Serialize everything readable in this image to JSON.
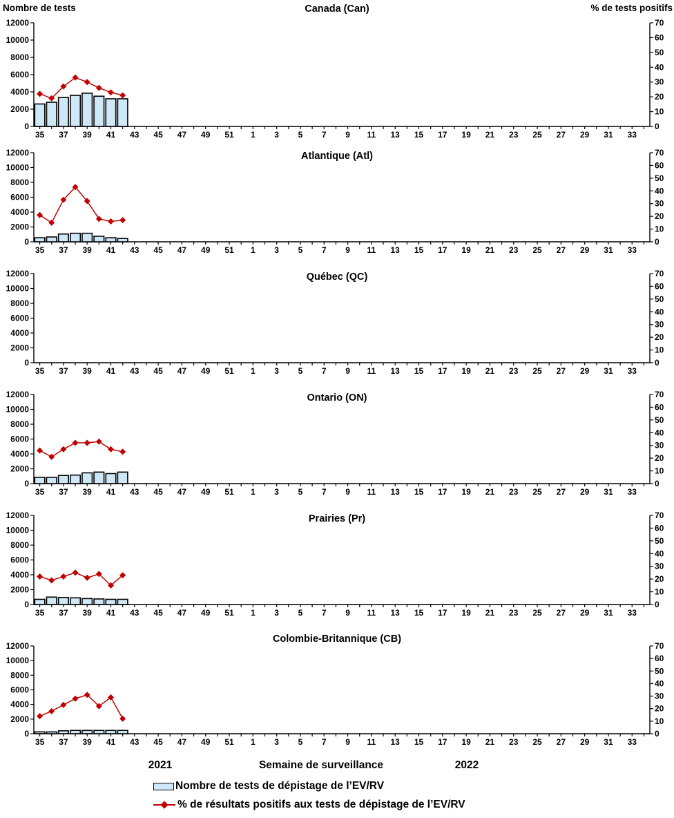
{
  "axes": {
    "left_title": "Nombre de tests",
    "right_title": "% de tests positifs",
    "left_min": 0,
    "left_max": 12000,
    "left_step": 2000,
    "right_min": 0,
    "right_max": 70,
    "right_step": 10
  },
  "x_axis": {
    "categories": [
      35,
      36,
      37,
      38,
      39,
      40,
      41,
      42,
      43,
      44,
      45,
      46,
      47,
      48,
      49,
      50,
      51,
      52,
      1,
      2,
      3,
      4,
      5,
      6,
      7,
      8,
      9,
      10,
      11,
      12,
      13,
      14,
      15,
      16,
      17,
      18,
      19,
      20,
      21,
      22,
      23,
      24,
      25,
      26,
      27,
      28,
      29,
      30,
      31,
      32,
      33,
      34
    ],
    "tick_labels": [
      35,
      37,
      39,
      41,
      43,
      45,
      47,
      49,
      51,
      1,
      3,
      5,
      7,
      9,
      11,
      13,
      15,
      17,
      19,
      21,
      23,
      25,
      27,
      29,
      31,
      33
    ]
  },
  "chart_data": [
    {
      "type": "combo-bar-line",
      "title": "Canada (Can)",
      "weeks": [
        35,
        36,
        37,
        38,
        39,
        40,
        41,
        42
      ],
      "tests": [
        2600,
        2800,
        3350,
        3600,
        3850,
        3500,
        3200,
        3200
      ],
      "pct_positive": [
        22,
        19,
        27,
        33,
        30,
        26,
        23,
        21
      ],
      "ylim_left": [
        0,
        12000
      ],
      "ylim_right": [
        0,
        70
      ]
    },
    {
      "type": "combo-bar-line",
      "title": "Atlantique (Atl)",
      "weeks": [
        35,
        36,
        37,
        38,
        39,
        40,
        41,
        42
      ],
      "tests": [
        550,
        650,
        1050,
        1150,
        1150,
        750,
        550,
        450
      ],
      "pct_positive": [
        21,
        15,
        33,
        43,
        32,
        18,
        16,
        17
      ],
      "ylim_left": [
        0,
        12000
      ],
      "ylim_right": [
        0,
        70
      ]
    },
    {
      "type": "combo-bar-line",
      "title": "Québec (QC)",
      "weeks": [],
      "tests": [],
      "pct_positive": [],
      "ylim_left": [
        0,
        12000
      ],
      "ylim_right": [
        0,
        70
      ]
    },
    {
      "type": "combo-bar-line",
      "title": "Ontario (ON)",
      "weeks": [
        35,
        36,
        37,
        38,
        39,
        40,
        41,
        42
      ],
      "tests": [
        850,
        850,
        1100,
        1150,
        1450,
        1550,
        1350,
        1550
      ],
      "pct_positive": [
        26,
        21,
        27,
        32,
        32,
        33,
        27,
        25
      ],
      "ylim_left": [
        0,
        12000
      ],
      "ylim_right": [
        0,
        70
      ]
    },
    {
      "type": "combo-bar-line",
      "title": "Prairies (Pr)",
      "weeks": [
        35,
        36,
        37,
        38,
        39,
        40,
        41,
        42
      ],
      "tests": [
        700,
        1000,
        950,
        900,
        800,
        750,
        700,
        700
      ],
      "pct_positive": [
        22,
        19,
        22,
        25,
        21,
        24,
        15,
        23
      ],
      "ylim_left": [
        0,
        12000
      ],
      "ylim_right": [
        0,
        70
      ]
    },
    {
      "type": "combo-bar-line",
      "title": "Colombie-Britannique (CB)",
      "weeks": [
        35,
        36,
        37,
        38,
        39,
        40,
        41,
        42
      ],
      "tests": [
        250,
        250,
        400,
        450,
        450,
        450,
        450,
        450
      ],
      "pct_positive": [
        14,
        18,
        23,
        28,
        31,
        22,
        29,
        12
      ],
      "ylim_left": [
        0,
        12000
      ],
      "ylim_right": [
        0,
        70
      ]
    }
  ],
  "footer": {
    "year_left": "2021",
    "axis_title": "Semaine de surveillance",
    "year_right": "2022"
  },
  "legend": [
    {
      "swatch": "bar",
      "label": "Nombre de tests de dépistage de l’EV/RV"
    },
    {
      "swatch": "line-diamond",
      "label": "% de résultats positifs aux tests de dépistage de l’EV/RV"
    }
  ],
  "colors": {
    "bar_fill": "#cfe8f8",
    "bar_border": "#000000",
    "line_color": "#c00000",
    "text_color": "#000000"
  }
}
